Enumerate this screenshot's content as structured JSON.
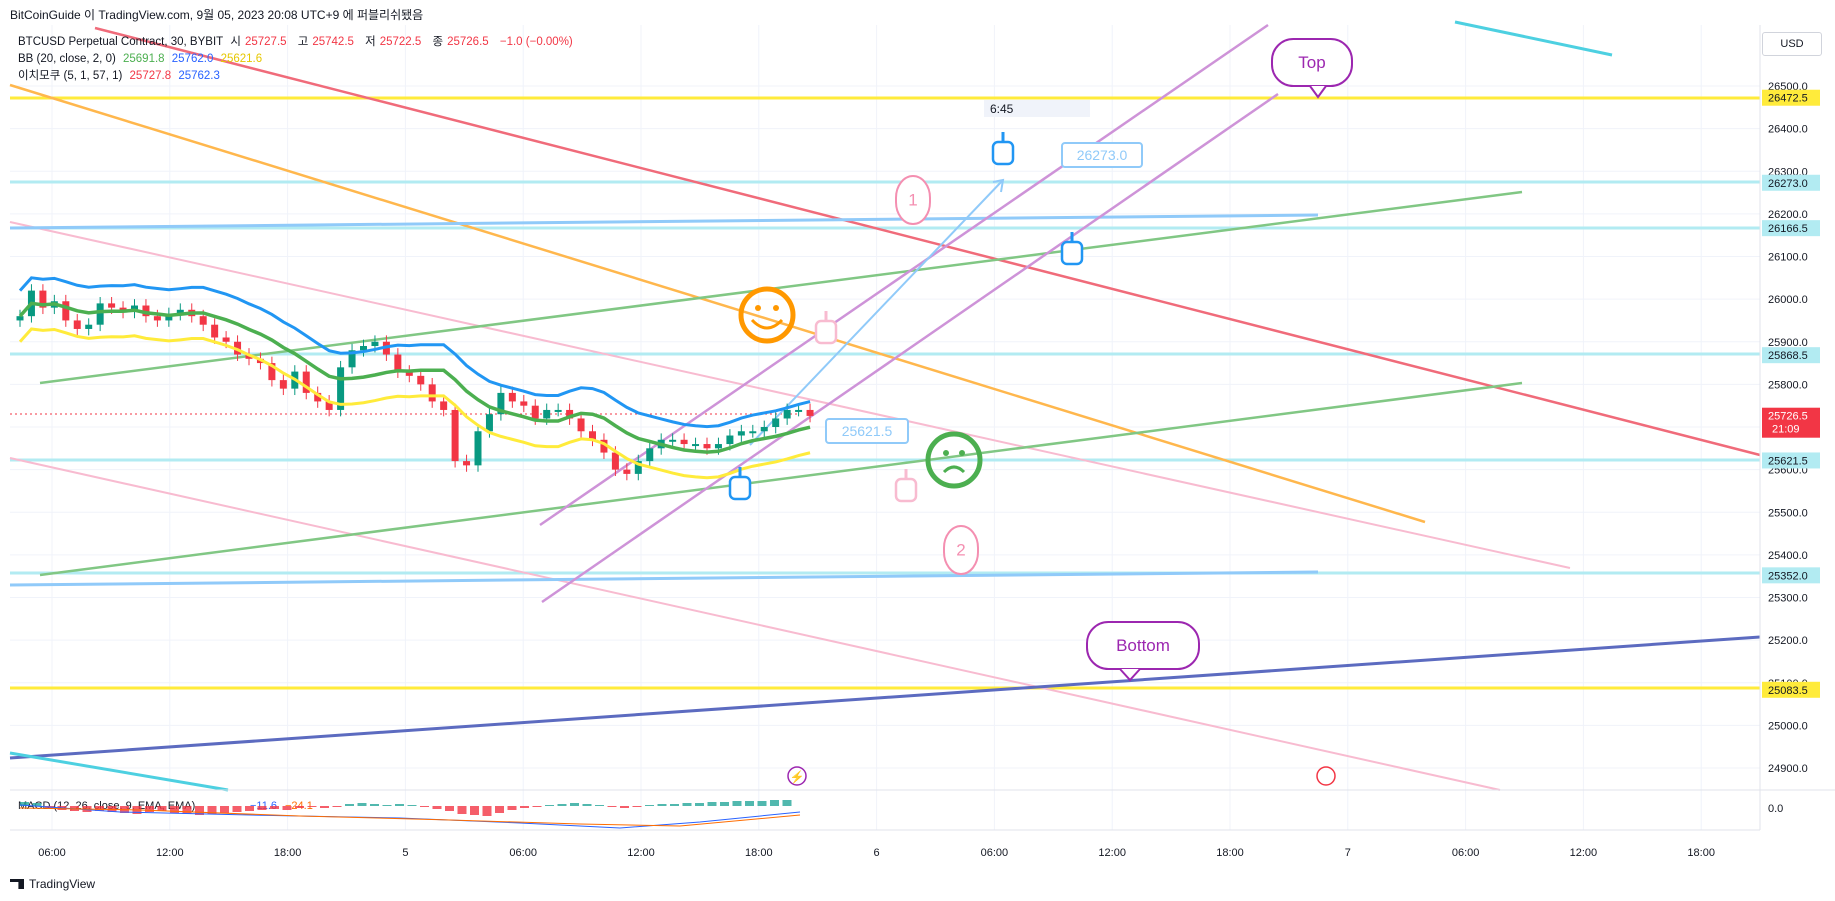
{
  "caption": "BitCoinGuide 이 TradingView.com, 9월 05, 2023 20:08 UTC+9 에 퍼블리쉬됐음",
  "legend": {
    "symbol_line": "BTCUSD Perpetual Contract, 30, BYBIT",
    "o_label": "시",
    "o_value": "25727.5",
    "h_label": "고",
    "h_value": "25742.5",
    "l_label": "저",
    "l_value": "25722.5",
    "c_label": "종",
    "c_value": "25726.5",
    "change": "−1.0 (−0.00%)",
    "bb_label": "BB (20, close, 2, 0)",
    "bb_basis": "25691.8",
    "bb_upper": "25762.0",
    "bb_lower": "25621.6",
    "ichimoku_label": "이치모쿠 (5, 1, 57, 1)",
    "ichimoku_a": "25727.8",
    "ichimoku_b": "25762.3"
  },
  "currency": "USD",
  "footer": "TradingView",
  "chart_data": {
    "type": "candlestick",
    "symbol": "BTCUSD",
    "y_axis": {
      "ticks": [
        26500,
        26400,
        26300,
        26200,
        26100,
        26000,
        25900,
        25800,
        25700,
        25600,
        25500,
        25400,
        25300,
        25200,
        25100,
        25000,
        24900
      ]
    },
    "x_axis": {
      "ticks": [
        "06:00",
        "12:00",
        "18:00",
        "5",
        "06:00",
        "12:00",
        "18:00",
        "6",
        "06:00",
        "12:00",
        "18:00",
        "7",
        "06:00",
        "12:00",
        "18:00"
      ]
    },
    "price_labels": [
      {
        "value": "26472.5",
        "color": "#ffeb3b",
        "text_color": "#131722"
      },
      {
        "value": "26273.0",
        "color": "#b2ebf2",
        "text_color": "#131722"
      },
      {
        "value": "26166.5",
        "color": "#b2ebf2",
        "text_color": "#131722"
      },
      {
        "value": "25868.5",
        "color": "#b2ebf2",
        "text_color": "#131722"
      },
      {
        "value": "25621.5",
        "color": "#b2ebf2",
        "text_color": "#131722"
      },
      {
        "value": "25352.0",
        "color": "#b2ebf2",
        "text_color": "#131722"
      },
      {
        "value": "25083.5",
        "color": "#ffeb3b",
        "text_color": "#131722"
      }
    ],
    "current_price": {
      "value": "25726.5",
      "countdown": "21:09",
      "color": "#f23645"
    },
    "annotations": {
      "top": "Top",
      "bottom": "Bottom",
      "one": "1",
      "two": "2",
      "time_label": "6:45",
      "target_upper": "26273.0",
      "target_lower": "25621.5"
    },
    "macd": {
      "label": "MACD (12, 26, close, 9, EMA, EMA)",
      "v1": "−11.6",
      "v2": "−24.1",
      "zero": "0.0"
    },
    "colors": {
      "up": "#089981",
      "down": "#f23645",
      "bb_upper": "#2196f3",
      "bb_basis": "#4caf50",
      "bb_lower": "#ffeb3b"
    }
  }
}
